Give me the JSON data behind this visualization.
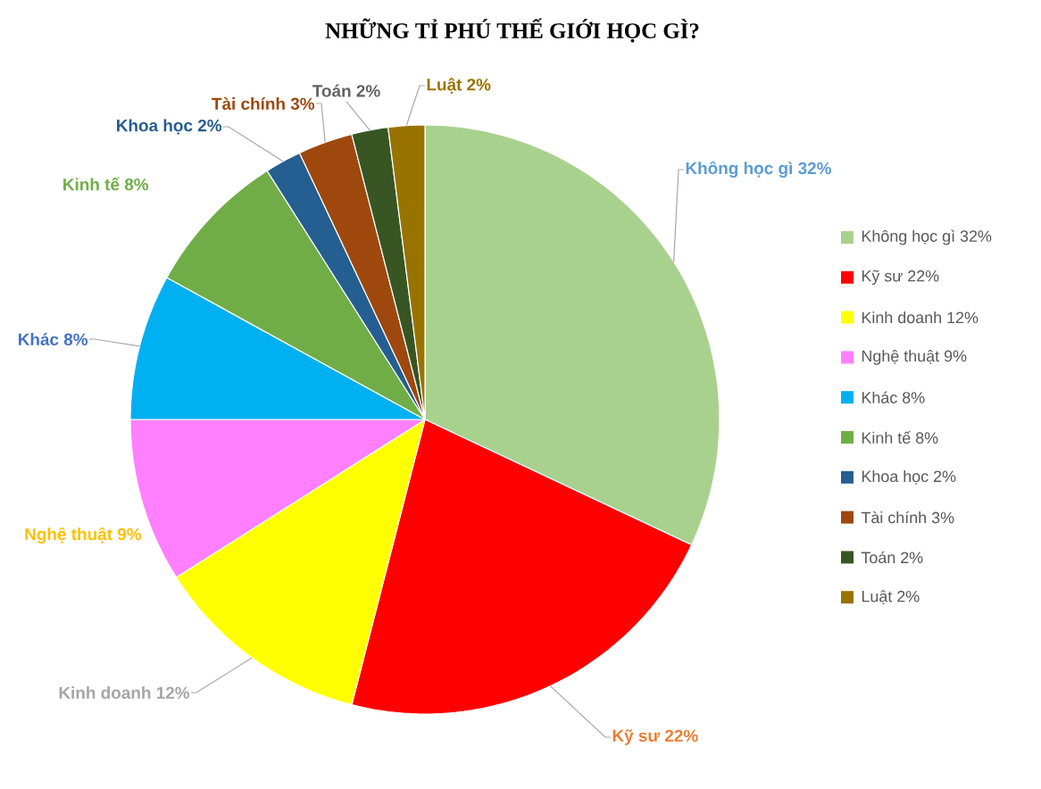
{
  "chart_data": {
    "type": "pie",
    "title": "NHỮNG TỈ PHÚ THẾ GIỚI HỌC GÌ?",
    "categories": [
      "Không học gì 32%",
      "Kỹ sư 22%",
      "Kinh doanh 12%",
      "Nghệ thuật 9%",
      "Khác 8%",
      "Kinh tế 8%",
      "Khoa học 2%",
      "Tài chính 3%",
      "Toán 2%",
      "Luật 2%"
    ],
    "values": [
      32,
      22,
      12,
      9,
      8,
      8,
      2,
      3,
      2,
      2
    ],
    "colors": [
      "#a9d18e",
      "#ff0000",
      "#ffff00",
      "#ff7fff",
      "#00b0f0",
      "#70ad47",
      "#255e91",
      "#9e480e",
      "#375623",
      "#997300"
    ],
    "legend": "right"
  }
}
